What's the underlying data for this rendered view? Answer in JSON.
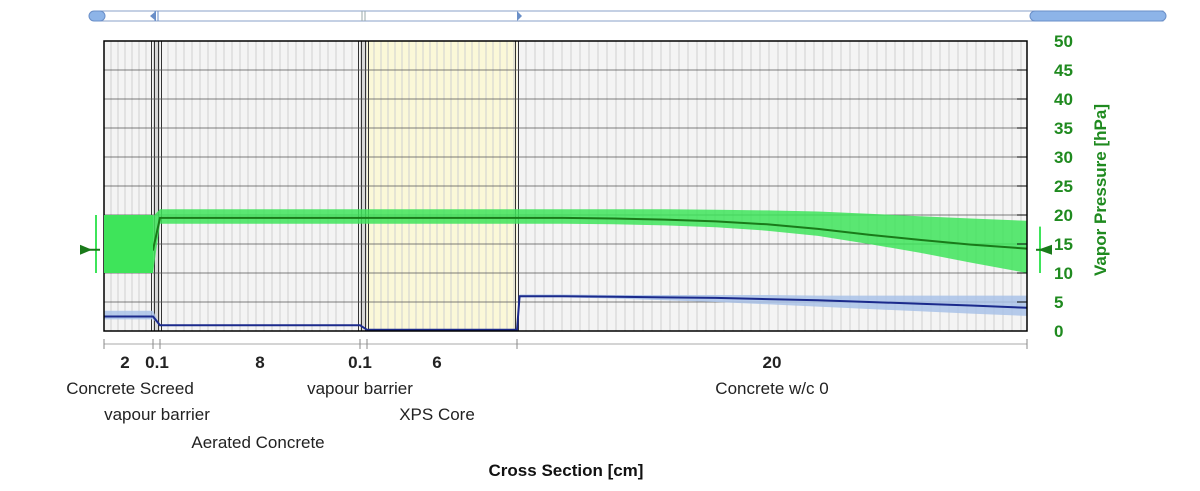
{
  "chart_data": {
    "type": "line",
    "xlabel": "Cross Section [cm]",
    "ylabel": "Vapor Pressure [hPa]",
    "ylim": [
      0,
      50
    ],
    "yticks": [
      0,
      5,
      10,
      15,
      20,
      25,
      30,
      35,
      40,
      45,
      50
    ],
    "grid": true,
    "colors": {
      "vapor_pressure": "#1a7a1a",
      "vapor_band": "#3ee45a",
      "saturation": "#1b2a8c",
      "saturation_band": "#a9c2e8",
      "axis_label": "#1f8a1f",
      "xps_fill": "#fbf8d8",
      "layer_fill": "#f4f4f4"
    },
    "layers": [
      {
        "thickness": "2",
        "name": "Concrete Screed"
      },
      {
        "thickness": "0.1",
        "name": "vapour barrier"
      },
      {
        "thickness": "8",
        "name": "Aerated Concrete"
      },
      {
        "thickness": "0.1",
        "name": "vapour barrier"
      },
      {
        "thickness": "6",
        "name": "XPS Core"
      },
      {
        "thickness": "20",
        "name": "Concrete w/c 0"
      }
    ],
    "outdoor": {
      "vapor_pressure": 14,
      "band": [
        10,
        20
      ],
      "saturation": 2.5,
      "saturation_band": [
        2,
        3.5
      ]
    },
    "indoor": {
      "vapor_pressure": 14,
      "band": [
        10,
        18
      ]
    },
    "series": [
      {
        "key": "vapor_pressure",
        "x": [
          0,
          2,
          2.1,
          10.1,
          10.2,
          16.2,
          18,
          20,
          22,
          24,
          26,
          28,
          30,
          32,
          34,
          36.2
        ],
        "values": [
          14,
          14,
          19.5,
          19.5,
          19.5,
          19.5,
          19.5,
          19.4,
          19.2,
          18.9,
          18.4,
          17.6,
          16.6,
          15.7,
          14.9,
          14.2
        ],
        "upper": [
          19.8,
          19.8,
          21,
          21,
          21,
          21,
          21,
          21,
          21,
          20.9,
          20.8,
          20.6,
          20.2,
          19.8,
          19.4,
          19
        ],
        "lower": [
          10,
          10,
          18.5,
          18.5,
          18.5,
          18.5,
          18.5,
          18.4,
          18.2,
          17.9,
          17.3,
          16.4,
          15,
          13.5,
          11.8,
          10
        ]
      },
      {
        "key": "saturation",
        "x": [
          0,
          2,
          2.1,
          10.1,
          10.2,
          16.2,
          16.3,
          18,
          20,
          22,
          24,
          26,
          28,
          30,
          32,
          34,
          36.2
        ],
        "values": [
          2.5,
          2.5,
          1,
          1,
          0.2,
          0.2,
          6,
          6,
          5.9,
          5.8,
          5.7,
          5.5,
          5.3,
          5,
          4.7,
          4.4,
          4
        ],
        "upper": [
          3.5,
          3.5,
          1,
          1,
          0.2,
          0.2,
          6.3,
          6.3,
          6.2,
          6.2,
          6.2,
          6.2,
          6.1,
          6.1,
          6.1,
          6.1,
          6.1
        ],
        "lower": [
          2,
          2,
          1,
          1,
          0.2,
          0.2,
          5.8,
          5.8,
          5.6,
          5.3,
          5,
          4.6,
          4.2,
          3.8,
          3.4,
          3,
          2.6
        ]
      }
    ]
  }
}
